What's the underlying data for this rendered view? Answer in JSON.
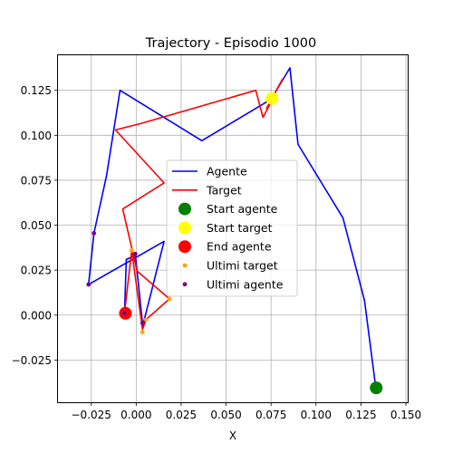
{
  "chart_data": {
    "type": "line",
    "title": "Trajectory - Episodio 1000",
    "xlabel": "X",
    "ylabel": "",
    "xlim": [
      -0.0435,
      0.151
    ],
    "ylim": [
      -0.0485,
      0.1445
    ],
    "xticks": [
      -0.025,
      0.0,
      0.025,
      0.05,
      0.075,
      0.1,
      0.125,
      0.15
    ],
    "xtick_labels": [
      "−0.025",
      "0.000",
      "0.025",
      "0.050",
      "0.075",
      "0.100",
      "0.125",
      "0.150"
    ],
    "yticks": [
      -0.025,
      0.0,
      0.025,
      0.05,
      0.075,
      0.1,
      0.125
    ],
    "ytick_labels": [
      "−0.025",
      "0.000",
      "0.025",
      "0.050",
      "0.075",
      "0.100",
      "0.125"
    ],
    "grid": true,
    "legend_position": "center",
    "series": [
      {
        "name": "Agente",
        "color": "#0000ff",
        "x": [
          0.133,
          0.127,
          0.115,
          0.09,
          0.0855,
          0.075,
          0.0365,
          -0.009,
          -0.0165,
          -0.0235,
          -0.0265,
          0.0155,
          0.0035,
          0.0035,
          -0.0005,
          -0.0005,
          -0.0055,
          -0.0065
        ],
        "y": [
          -0.0385,
          0.008,
          0.054,
          0.095,
          0.1375,
          0.12,
          0.097,
          0.125,
          0.0775,
          0.0455,
          0.017,
          0.041,
          -0.0065,
          -0.0045,
          0.034,
          0.033,
          0.031,
          0.001
        ]
      },
      {
        "name": "Target",
        "color": "#ff0000",
        "x": [
          0.0815,
          0.0725,
          0.0775,
          0.0705,
          0.0665,
          0.0025,
          -0.0115,
          0.0155,
          -0.0075,
          0.0005,
          0.0185,
          0.0055,
          0.0035,
          -0.0025,
          -0.0065
        ],
        "y": [
          0.1315,
          0.115,
          0.123,
          0.11,
          0.125,
          0.1065,
          0.103,
          0.0735,
          0.059,
          0.0245,
          0.009,
          -0.0025,
          -0.008,
          0.036,
          0.001
        ]
      }
    ],
    "points": {
      "start_agente": {
        "name": "Start agente",
        "color": "#008000",
        "x": 0.1335,
        "y": -0.0405
      },
      "start_target": {
        "name": "Start target",
        "color": "#ffff00",
        "x": 0.0755,
        "y": 0.1205
      },
      "end_agente": {
        "name": "End agente",
        "color": "#ff0000",
        "x": -0.006,
        "y": 0.001
      },
      "ultimi_target": {
        "name": "Ultimi target",
        "color": "#ffa500",
        "x": [
          0.0185,
          0.0055,
          0.0035,
          -0.0025,
          -0.0065
        ],
        "y": [
          0.009,
          -0.0025,
          -0.0095,
          0.036,
          0.001
        ]
      },
      "ultimi_agente": {
        "name": "Ultimi agente",
        "color": "#800080",
        "x": [
          -0.0235,
          -0.0265,
          0.0035,
          -0.0005,
          -0.0065
        ],
        "y": [
          0.0455,
          0.017,
          -0.0045,
          0.034,
          0.001
        ]
      }
    },
    "legend": [
      "Agente",
      "Target",
      "Start agente",
      "Start target",
      "End agente",
      "Ultimi target",
      "Ultimi agente"
    ]
  }
}
